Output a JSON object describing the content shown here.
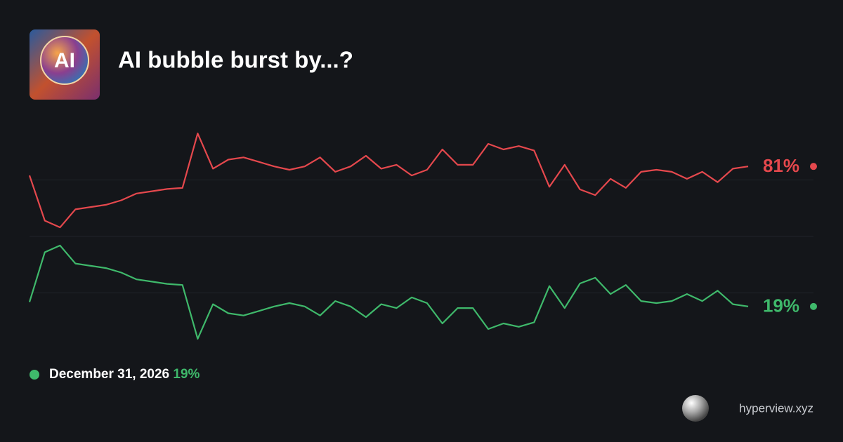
{
  "icon_text": "AI",
  "brand": "hyperview.xyz",
  "chart_data": {
    "type": "line",
    "title": "AI bubble burst by...?",
    "ylim": [
      0,
      100
    ],
    "yticks": [
      25,
      50,
      75
    ],
    "grid": true,
    "series": [
      {
        "color": "#e5484d",
        "values": [
          77,
          57,
          54,
          62,
          63,
          64,
          66,
          69,
          70,
          71,
          71.5,
          95.6,
          80,
          84,
          85,
          83,
          81,
          79.5,
          81,
          85,
          78.6,
          81,
          85.7,
          80,
          81.7,
          77,
          79.5,
          88.5,
          81.7,
          81.7,
          91,
          88.5,
          90,
          88,
          72,
          81.7,
          70.8,
          68.3,
          75.5,
          71.5,
          78.6,
          79.5,
          78.6,
          75.5,
          78.6,
          74,
          80,
          81
        ],
        "value_labels": [
          null,
          null,
          null,
          null,
          null,
          null,
          null,
          null,
          null,
          null,
          null,
          null,
          null,
          null,
          null,
          null,
          null,
          null,
          null,
          null,
          null,
          null,
          null,
          null,
          null,
          null,
          null,
          null,
          null,
          null,
          null,
          null,
          null,
          null,
          null,
          null,
          null,
          null,
          null,
          null,
          null,
          null,
          null,
          null,
          null,
          null,
          null,
          "81%"
        ]
      },
      {
        "name": "December 31, 2026",
        "color": "#3fb96b",
        "values": [
          21,
          43,
          46,
          38,
          37,
          36,
          34,
          31,
          30,
          29,
          28.5,
          4.7,
          20,
          16,
          15,
          17,
          19,
          20.5,
          19,
          15,
          21.4,
          19,
          14.3,
          20,
          18.3,
          23,
          20.5,
          11.5,
          18.3,
          18.3,
          9,
          11.5,
          10,
          12,
          28,
          18.3,
          29.2,
          31.7,
          24.5,
          28.5,
          21.4,
          20.5,
          21.4,
          24.5,
          21.4,
          26,
          20,
          19
        ],
        "value_labels": [
          null,
          null,
          null,
          null,
          null,
          null,
          null,
          null,
          null,
          null,
          null,
          null,
          null,
          null,
          null,
          null,
          null,
          null,
          null,
          null,
          null,
          null,
          null,
          null,
          null,
          null,
          null,
          null,
          null,
          null,
          null,
          null,
          null,
          null,
          null,
          null,
          null,
          null,
          null,
          null,
          null,
          null,
          null,
          null,
          null,
          null,
          null,
          "19%"
        ]
      }
    ]
  }
}
